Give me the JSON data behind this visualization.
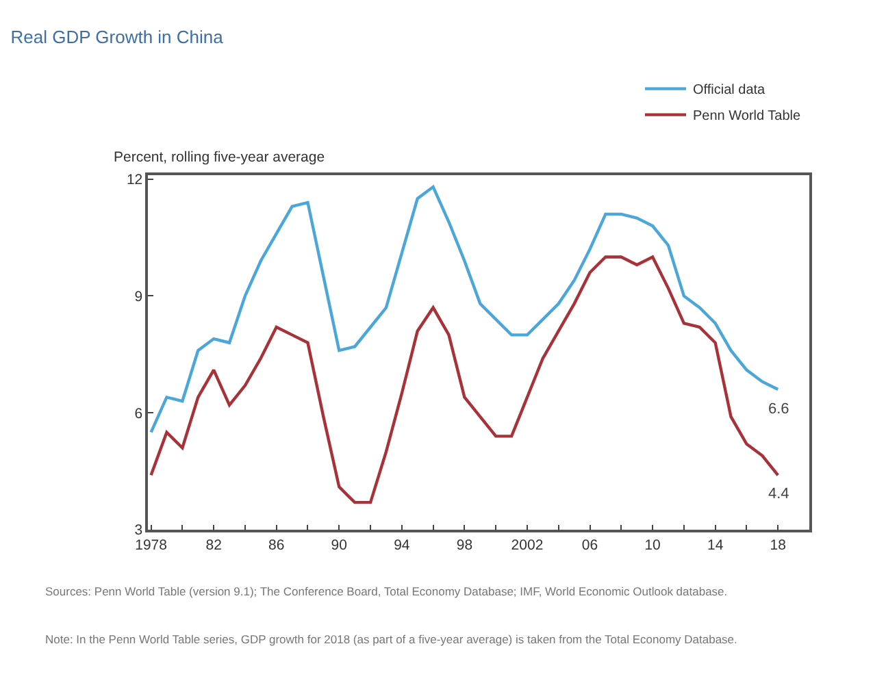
{
  "chart_data": {
    "type": "line",
    "title": "Real GDP Growth in China",
    "ylabel": "Percent, rolling five-year average",
    "x": [
      1978,
      1979,
      1980,
      1981,
      1982,
      1983,
      1984,
      1985,
      1986,
      1987,
      1988,
      1989,
      1990,
      1991,
      1992,
      1993,
      1994,
      1995,
      1996,
      1997,
      1998,
      1999,
      2000,
      2001,
      2002,
      2003,
      2004,
      2005,
      2006,
      2007,
      2008,
      2009,
      2010,
      2011,
      2012,
      2013,
      2014,
      2015,
      2016,
      2017,
      2018
    ],
    "series": [
      {
        "name": "Official data",
        "color": "#4ba6d9",
        "values": [
          5.5,
          6.4,
          6.3,
          7.6,
          7.9,
          7.8,
          9.0,
          9.9,
          10.6,
          11.3,
          11.4,
          9.5,
          7.6,
          7.7,
          8.2,
          8.7,
          10.1,
          11.5,
          11.8,
          10.9,
          9.9,
          8.8,
          8.4,
          8.0,
          8.0,
          8.4,
          8.8,
          9.4,
          10.2,
          11.1,
          11.1,
          11.0,
          10.8,
          10.3,
          9.0,
          8.7,
          8.3,
          7.6,
          7.1,
          6.8,
          6.6
        ]
      },
      {
        "name": "Penn World Table",
        "color": "#a83239",
        "values": [
          4.4,
          5.5,
          5.1,
          6.4,
          7.1,
          6.2,
          6.7,
          7.4,
          8.2,
          8.0,
          7.8,
          5.9,
          4.1,
          3.7,
          3.7,
          5.0,
          6.5,
          8.1,
          8.7,
          8.0,
          6.4,
          5.9,
          5.4,
          5.4,
          6.4,
          7.4,
          8.1,
          8.8,
          9.6,
          10.0,
          10.0,
          9.8,
          10.0,
          9.2,
          8.3,
          8.2,
          7.8,
          5.9,
          5.2,
          4.9,
          4.4
        ]
      }
    ],
    "xlim": [
      1977.8,
      2020
    ],
    "ylim": [
      3,
      12.1
    ],
    "xticks": [
      {
        "value": 1978,
        "label": "1978"
      },
      {
        "value": 1980,
        "label": null
      },
      {
        "value": 1982,
        "label": "82"
      },
      {
        "value": 1984,
        "label": null
      },
      {
        "value": 1986,
        "label": "86"
      },
      {
        "value": 1988,
        "label": null
      },
      {
        "value": 1990,
        "label": "90"
      },
      {
        "value": 1992,
        "label": null
      },
      {
        "value": 1994,
        "label": "94"
      },
      {
        "value": 1996,
        "label": null
      },
      {
        "value": 1998,
        "label": "98"
      },
      {
        "value": 2000,
        "label": null
      },
      {
        "value": 2002,
        "label": "2002"
      },
      {
        "value": 2004,
        "label": null
      },
      {
        "value": 2006,
        "label": "06"
      },
      {
        "value": 2008,
        "label": null
      },
      {
        "value": 2010,
        "label": "10"
      },
      {
        "value": 2012,
        "label": null
      },
      {
        "value": 2014,
        "label": "14"
      },
      {
        "value": 2016,
        "label": null
      },
      {
        "value": 2018,
        "label": "18"
      }
    ],
    "yticks": [
      3,
      6,
      9,
      12
    ],
    "grid": false,
    "legend": "top right",
    "line_style": "solid",
    "annotations": [
      {
        "text": "6.6",
        "x": 2018,
        "y": 6.6
      },
      {
        "text": "4.4",
        "x": 2018,
        "y": 4.4
      },
      "Sources: Penn World Table (version 9.1); The Conference Board, Total Economy Database; IMF, World Economic Outlook database.",
      "Note: In the Penn World Table series, GDP growth for 2018 (as part of a five-year average) is taken from the Total Economy Database."
    ]
  }
}
